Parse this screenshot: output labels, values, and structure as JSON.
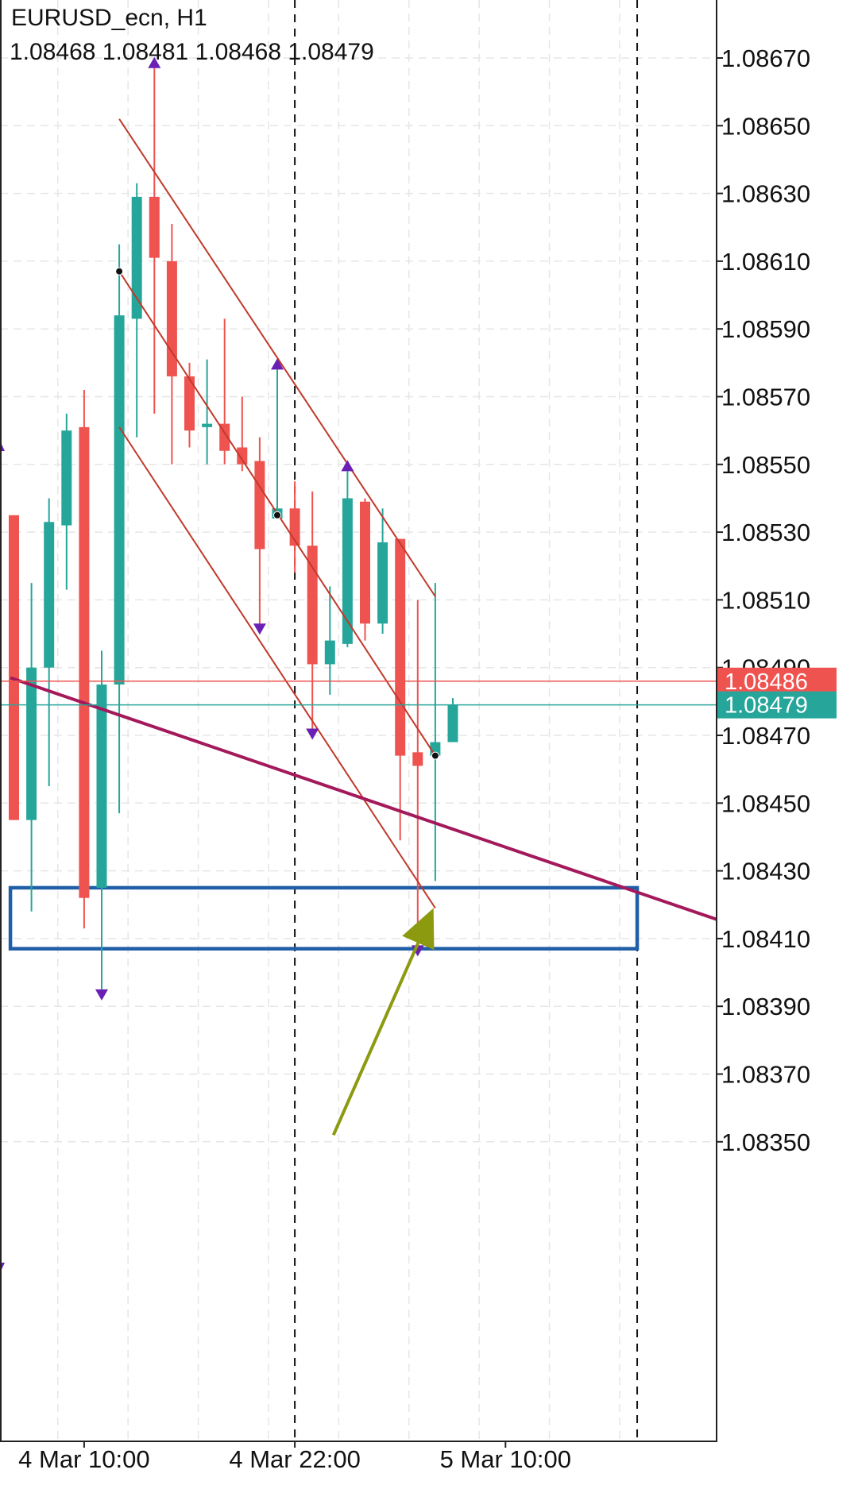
{
  "header": {
    "symbol_line": "EURUSD_ecn, H1",
    "ohlc_line": "1.08468 1.08481 1.08468 1.08479"
  },
  "colors": {
    "bull": "#26a69a",
    "bear": "#ef5350",
    "grid": "#e6e6e6",
    "trendline": "#c0392b",
    "magenta_line": "#a3195b",
    "zone": "#1f5fa8",
    "arrow": "#8c9a10",
    "fractal": "#6a1fb5",
    "ask_line": "#ef5350",
    "bid_line": "#26a69a"
  },
  "chart_data": {
    "type": "candlestick",
    "symbol": "EURUSD_ecn",
    "timeframe": "H1",
    "ylim": [
      1.0834,
      1.0868
    ],
    "y_ticks": [
      "1.08670",
      "1.08650",
      "1.08630",
      "1.08610",
      "1.08590",
      "1.08570",
      "1.08550",
      "1.08530",
      "1.08510",
      "1.08490",
      "1.08470",
      "1.08450",
      "1.08430",
      "1.08410",
      "1.08390",
      "1.08370",
      "1.08350"
    ],
    "x_ticks": [
      {
        "label": "4 Mar 10:00",
        "index": 4
      },
      {
        "label": "4 Mar 22:00",
        "index": 16
      },
      {
        "label": "5 Mar 10:00",
        "index": 28
      }
    ],
    "grid": true,
    "candles": [
      {
        "o": 1.08535,
        "h": 1.08535,
        "l": 1.08445,
        "c": 1.08445
      },
      {
        "o": 1.08445,
        "h": 1.08515,
        "l": 1.08418,
        "c": 1.0849
      },
      {
        "o": 1.0849,
        "h": 1.0854,
        "l": 1.08455,
        "c": 1.08533
      },
      {
        "o": 1.08532,
        "h": 1.08565,
        "l": 1.08513,
        "c": 1.0856
      },
      {
        "o": 1.08561,
        "h": 1.08572,
        "l": 1.08413,
        "c": 1.08422
      },
      {
        "o": 1.08425,
        "h": 1.08495,
        "l": 1.08395,
        "c": 1.08485
      },
      {
        "o": 1.08485,
        "h": 1.08615,
        "l": 1.08447,
        "c": 1.08594
      },
      {
        "o": 1.08593,
        "h": 1.08633,
        "l": 1.08558,
        "c": 1.08629
      },
      {
        "o": 1.08629,
        "h": 1.08667,
        "l": 1.08565,
        "c": 1.08611
      },
      {
        "o": 1.0861,
        "h": 1.08621,
        "l": 1.0855,
        "c": 1.08576
      },
      {
        "o": 1.08576,
        "h": 1.0858,
        "l": 1.08555,
        "c": 1.0856
      },
      {
        "o": 1.08561,
        "h": 1.08581,
        "l": 1.0855,
        "c": 1.08562
      },
      {
        "o": 1.08562,
        "h": 1.08593,
        "l": 1.0855,
        "c": 1.08554
      },
      {
        "o": 1.08555,
        "h": 1.0857,
        "l": 1.08548,
        "c": 1.0855
      },
      {
        "o": 1.08551,
        "h": 1.08558,
        "l": 1.08503,
        "c": 1.08525
      },
      {
        "o": 1.08534,
        "h": 1.08578,
        "l": 1.08535,
        "c": 1.08537
      },
      {
        "o": 1.08537,
        "h": 1.08545,
        "l": 1.08518,
        "c": 1.08526
      },
      {
        "o": 1.08526,
        "h": 1.08542,
        "l": 1.08472,
        "c": 1.08491
      },
      {
        "o": 1.08491,
        "h": 1.08514,
        "l": 1.08482,
        "c": 1.08498
      },
      {
        "o": 1.08497,
        "h": 1.08548,
        "l": 1.08496,
        "c": 1.0854
      },
      {
        "o": 1.08539,
        "h": 1.0854,
        "l": 1.08498,
        "c": 1.08503
      },
      {
        "o": 1.08503,
        "h": 1.08537,
        "l": 1.085,
        "c": 1.08527
      },
      {
        "o": 1.08528,
        "h": 1.08528,
        "l": 1.08439,
        "c": 1.08464
      },
      {
        "o": 1.08465,
        "h": 1.0851,
        "l": 1.08408,
        "c": 1.08461
      },
      {
        "o": 1.08464,
        "h": 1.08515,
        "l": 1.08427,
        "c": 1.08468
      },
      {
        "o": 1.08468,
        "h": 1.08481,
        "l": 1.08468,
        "c": 1.08479
      }
    ],
    "current_ask": "1.08486",
    "current_bid": "1.08479",
    "fractals": [
      {
        "index": 8,
        "dir": "up",
        "price": 1.08667
      },
      {
        "index": 15,
        "dir": "up",
        "price": 1.08578
      },
      {
        "index": 19,
        "dir": "up",
        "price": 1.08548
      },
      {
        "index": 14,
        "dir": "down",
        "price": 1.08503
      },
      {
        "index": 17,
        "dir": "down",
        "price": 1.08472
      },
      {
        "index": 5,
        "dir": "down",
        "price": 1.08395
      },
      {
        "index": 23,
        "dir": "down",
        "price": 1.08408
      }
    ],
    "markers": [
      {
        "index": 6,
        "price": 1.08607
      },
      {
        "index": 15,
        "price": 1.08535
      },
      {
        "index": 24,
        "price": 1.08464
      }
    ],
    "channel_lines": [
      {
        "i1": 6,
        "p1": 1.08652,
        "i2": 24,
        "p2": 1.08511
      },
      {
        "i1": 6,
        "p1": 1.08607,
        "i2": 24,
        "p2": 1.08464
      },
      {
        "i1": 6,
        "p1": 1.08561,
        "i2": 24,
        "p2": 1.08419
      }
    ],
    "diagonal_line": {
      "i1": -0.2,
      "p1": 1.08487,
      "i2": 40.4,
      "p2": 1.08415
    },
    "zone": {
      "i1": -0.2,
      "i2": 35.5,
      "top": 1.08425,
      "bottom": 1.08407
    },
    "arrow": {
      "i1": 18.2,
      "p1": 1.08352,
      "i2": 23.9,
      "p2": 1.08419
    },
    "vlines": [
      16,
      35.5
    ]
  }
}
